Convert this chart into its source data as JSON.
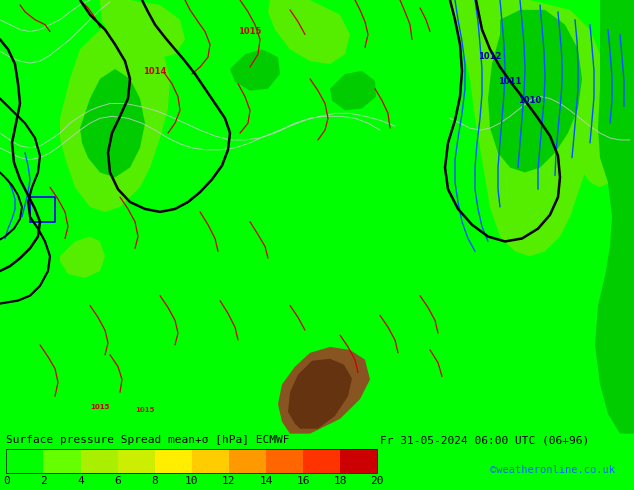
{
  "title_line1": "Surface pressure Spread mean+σ [hPa] ECMWF",
  "title_line2": "Fr 31-05-2024 06:00 UTC (06+96)",
  "credit": "©weatheronline.co.uk",
  "colorbar_values": [
    0,
    2,
    4,
    6,
    8,
    10,
    12,
    14,
    16,
    18,
    20
  ],
  "colorbar_colors": [
    "#00FF00",
    "#66FF00",
    "#AAEE00",
    "#CCEE00",
    "#FFEE00",
    "#FFCC00",
    "#FF9900",
    "#FF6600",
    "#FF3300",
    "#CC0000",
    "#880000"
  ],
  "map_bg": "#00FF00",
  "light_green": "#55EE00",
  "lighter_green": "#88FF44",
  "dark_green": "#00CC00",
  "bottom_bg": "#000000",
  "text_color": "#000000",
  "credit_color": "#0066FF",
  "fig_width": 6.34,
  "fig_height": 4.9,
  "dpi": 100,
  "cb_fontsize": 8,
  "label_fontsize": 8
}
